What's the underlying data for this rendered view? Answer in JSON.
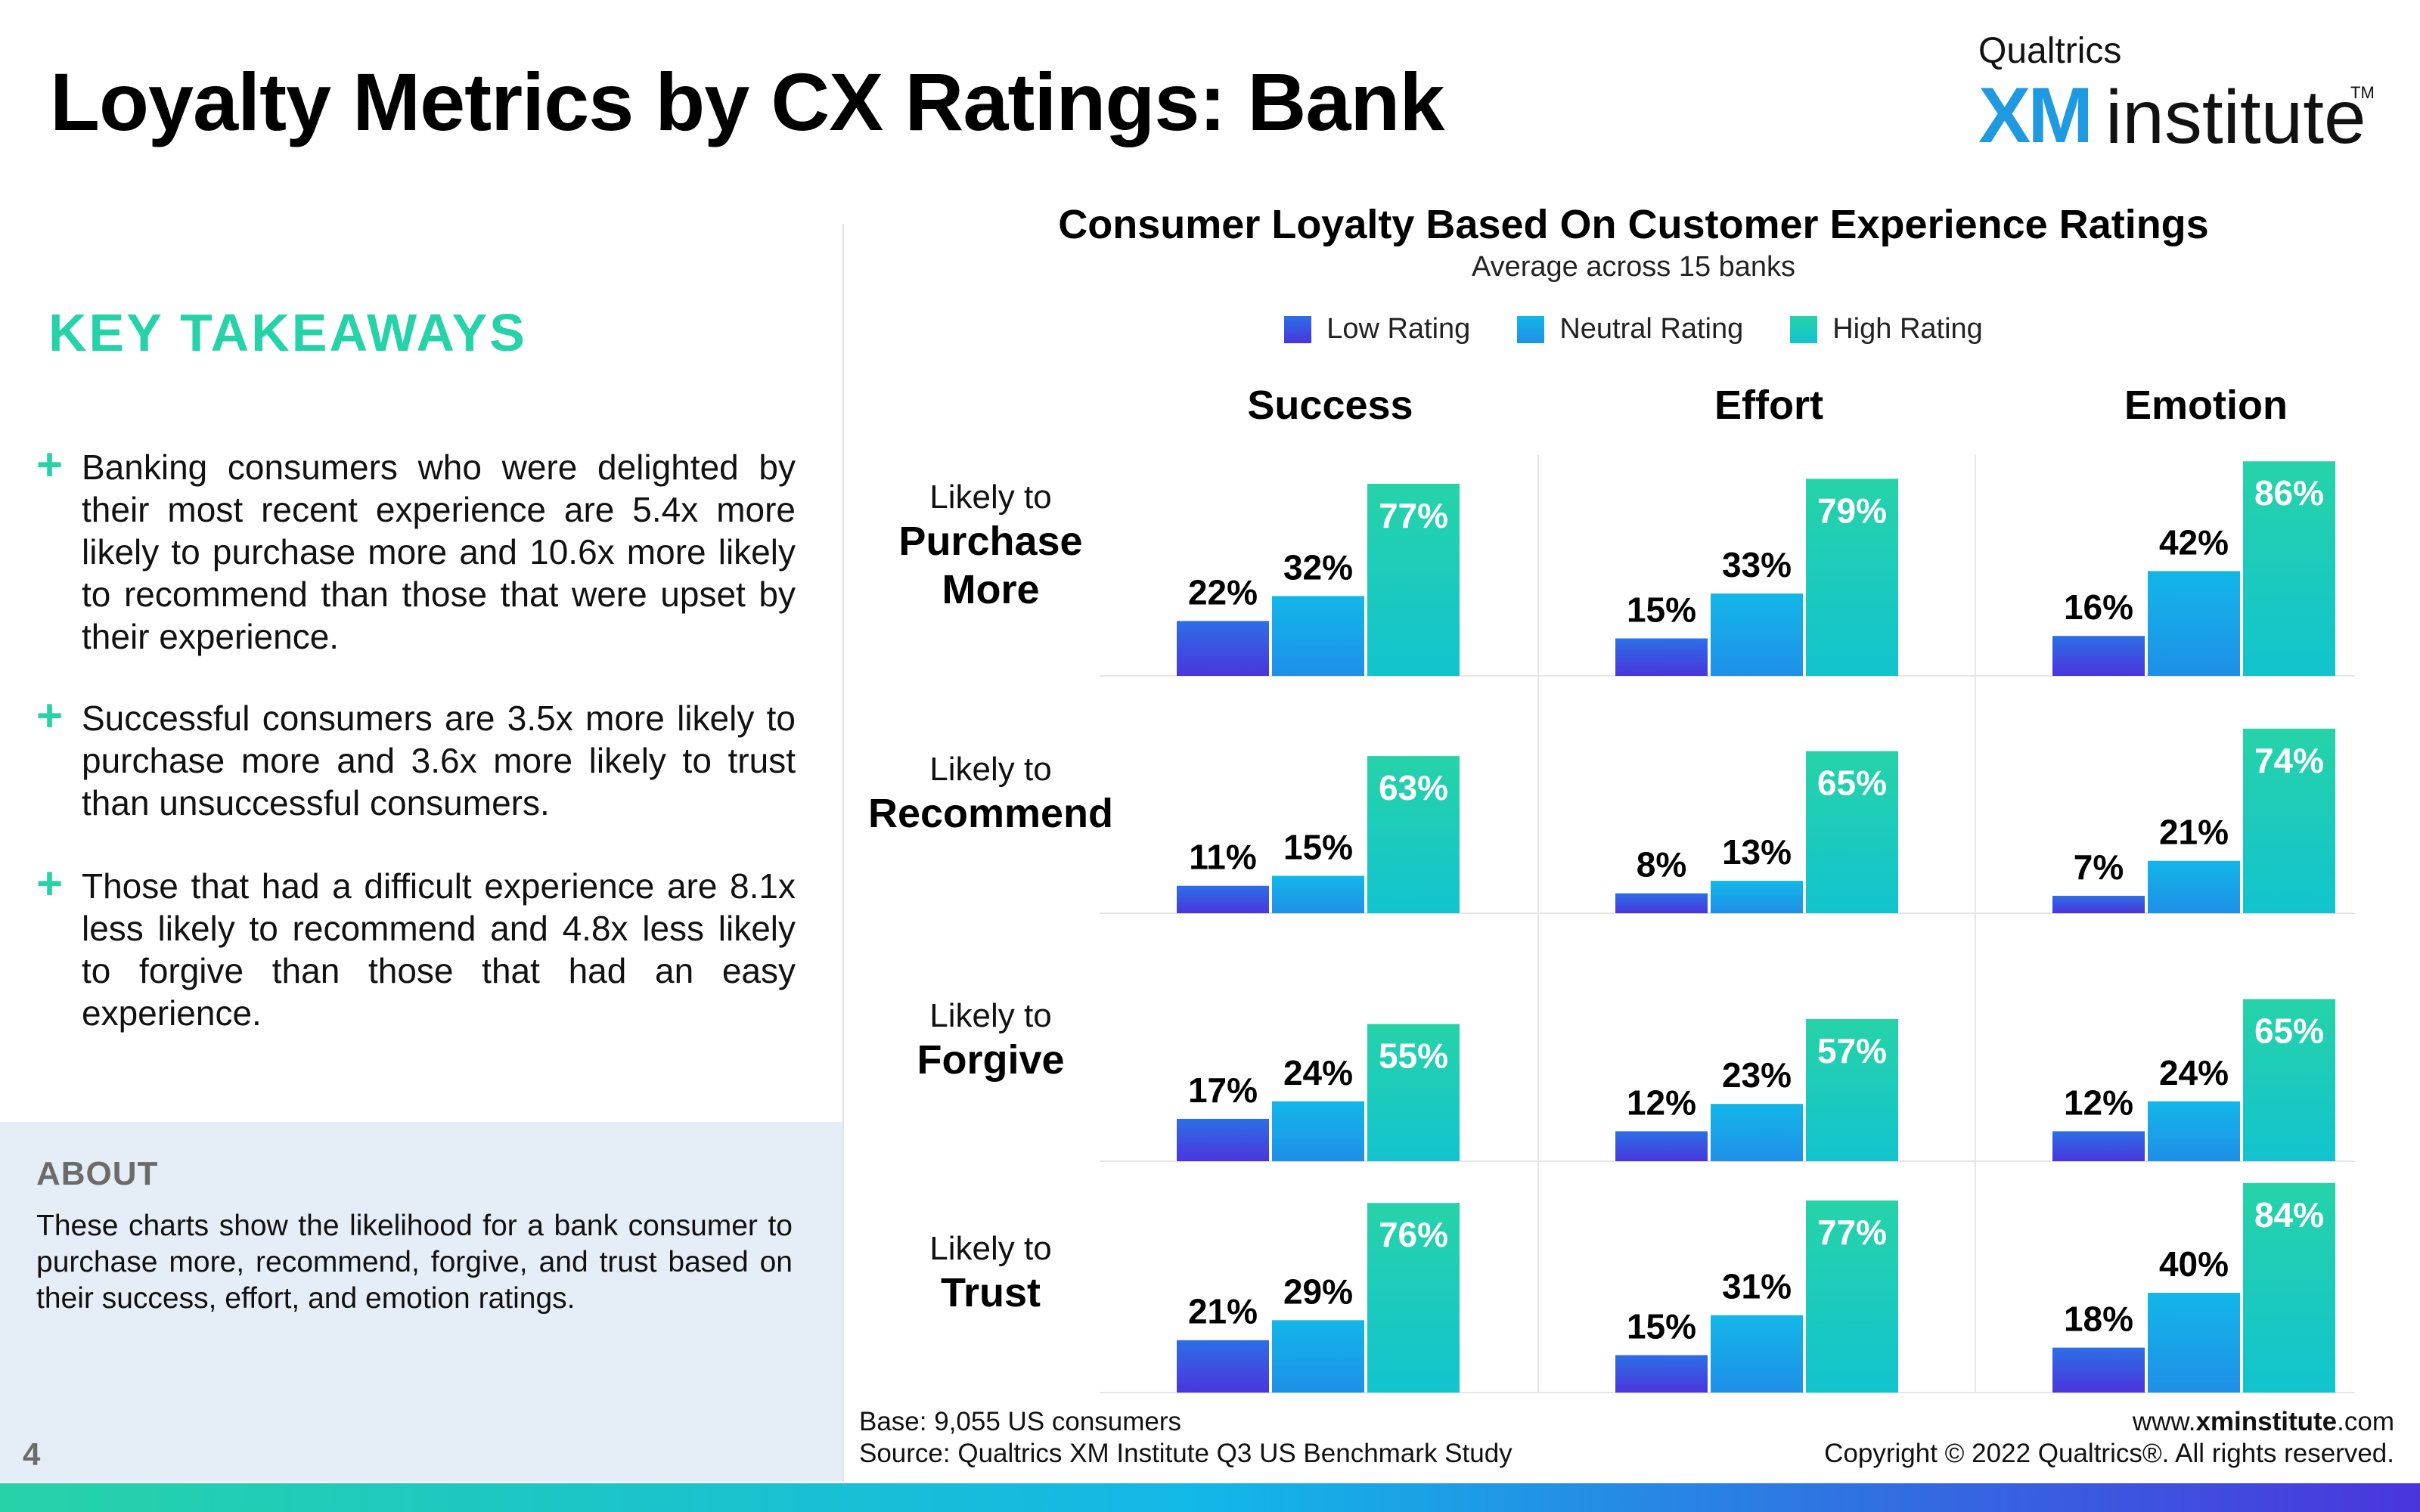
{
  "header": {
    "title": "Loyalty Metrics by CX Ratings: Bank"
  },
  "logo": {
    "brand": "Qualtrics",
    "xm": "XM",
    "institute": "institute",
    "tm": "TM"
  },
  "left": {
    "heading": "KEY TAKEAWAYS",
    "takeaways": [
      "Banking consumers who were delighted by their most recent experience are 5.4x more likely to purchase more and 10.6x more likely to recommend than those that were upset by their experience.",
      "Successful consumers are 3.5x more likely to purchase more and 3.6x more likely to trust than unsuccessful consumers.",
      "Those that had a difficult experience are 8.1x less likely to recommend and 4.8x less likely to forgive than those that had an easy experience."
    ],
    "about_heading": "ABOUT",
    "about_text": "These charts show the likelihood for a bank consumer to purchase more, recommend, forgive, and trust based on their success, effort, and emotion ratings.",
    "page_number": "4"
  },
  "footer": {
    "base": "Base: 9,055 US consumers",
    "source": "Source: Qualtrics XM Institute Q3 US Benchmark Study",
    "site_prefix": "www.",
    "site_bold": "xminstitute",
    "site_suffix": ".com",
    "copyright": "Copyright © 2022 Qualtrics®. All rights reserved."
  },
  "colors": {
    "accent": "#26d3a8",
    "low": "#4a35dd",
    "neutral": "#12b7e8",
    "high": "#26d3a8"
  },
  "chart_data": {
    "type": "bar",
    "title": "Consumer Loyalty Based On Customer Experience Ratings",
    "subtitle": "Average across 15 banks",
    "legend": [
      "Low Rating",
      "Neutral Rating",
      "High Rating"
    ],
    "legend_position": "top",
    "metrics": [
      "Success",
      "Effort",
      "Emotion"
    ],
    "rows": [
      {
        "prefix": "Likely to",
        "label_lines": [
          "Purchase",
          "More"
        ]
      },
      {
        "prefix": "Likely to",
        "label_lines": [
          "Recommend"
        ]
      },
      {
        "prefix": "Likely to",
        "label_lines": [
          "Forgive"
        ]
      },
      {
        "prefix": "Likely to",
        "label_lines": [
          "Trust"
        ]
      }
    ],
    "unit": "%",
    "values": [
      [
        [
          22,
          32,
          77
        ],
        [
          15,
          33,
          79
        ],
        [
          16,
          42,
          86
        ]
      ],
      [
        [
          11,
          15,
          63
        ],
        [
          8,
          13,
          65
        ],
        [
          7,
          21,
          74
        ]
      ],
      [
        [
          17,
          24,
          55
        ],
        [
          12,
          23,
          57
        ],
        [
          12,
          24,
          65
        ]
      ],
      [
        [
          21,
          29,
          76
        ],
        [
          15,
          31,
          77
        ],
        [
          18,
          40,
          84
        ]
      ]
    ]
  }
}
